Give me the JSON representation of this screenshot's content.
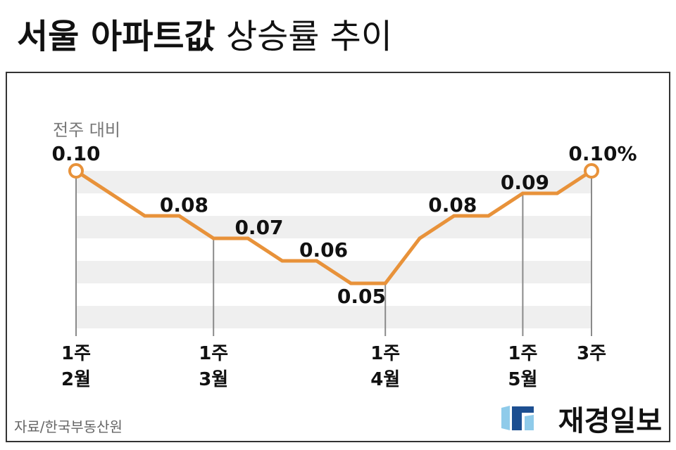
{
  "chart_data": {
    "type": "line",
    "title": {
      "bold": "서울 아파트값",
      "regular": "상승률 추이"
    },
    "subtitle": "전주 대비",
    "values": [
      0.1,
      0.09,
      0.08,
      0.08,
      0.07,
      0.07,
      0.06,
      0.06,
      0.05,
      0.05,
      0.07,
      0.08,
      0.08,
      0.09,
      0.09,
      0.1
    ],
    "x_ticks": [
      {
        "point": 0,
        "lines": [
          "1주",
          "2월"
        ]
      },
      {
        "point": 4,
        "lines": [
          "1주",
          "3월"
        ]
      },
      {
        "point": 9,
        "lines": [
          "1주",
          "4월"
        ]
      },
      {
        "point": 13,
        "lines": [
          "1주",
          "5월"
        ]
      },
      {
        "point": 15,
        "lines": [
          "3주"
        ]
      }
    ],
    "data_labels": [
      {
        "point": 0,
        "text": "0.10",
        "position": "above"
      },
      {
        "point": 3,
        "text": "0.08",
        "position": "above"
      },
      {
        "point": 5,
        "text": "0.07",
        "position": "above"
      },
      {
        "point": 7,
        "text": "0.06",
        "position": "above"
      },
      {
        "point": 8,
        "text": "0.05",
        "position": "below"
      },
      {
        "point": 11,
        "text": "0.08",
        "position": "above"
      },
      {
        "point": 13,
        "text": "0.09",
        "position": "above"
      },
      {
        "point": 15,
        "text": "0.10%",
        "position": "above"
      }
    ],
    "highlighted_points": [
      0,
      15
    ],
    "ylim": [
      0.03,
      0.1
    ],
    "grid": true,
    "legend": "none",
    "colors": {
      "line": "#E8923A",
      "band": "#EFEFEF",
      "marker_fill": "#FFFFFF",
      "guide": "#8A8A8A",
      "label": "#111111",
      "subtitle": "#777777"
    }
  },
  "source": "자료/한국부동산원",
  "publisher": {
    "logo_text": "재경일보",
    "logo_colors": {
      "light": "#8FCBEA",
      "dark": "#1D4F91"
    }
  }
}
